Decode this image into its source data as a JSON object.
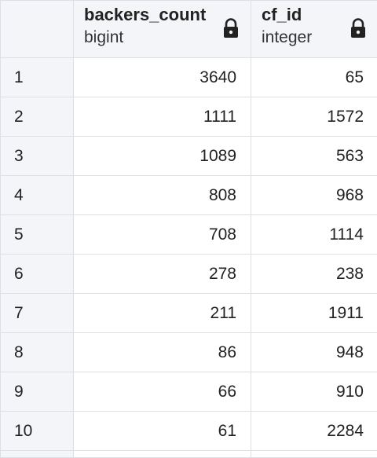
{
  "columns": [
    {
      "name": "backers_count",
      "type": "bigint",
      "icon": "lock-icon"
    },
    {
      "name": "cf_id",
      "type": "integer",
      "icon": "lock-icon"
    }
  ],
  "rows": [
    {
      "row_number": "1",
      "backers_count": "3640",
      "cf_id": "65"
    },
    {
      "row_number": "2",
      "backers_count": "1111",
      "cf_id": "1572"
    },
    {
      "row_number": "3",
      "backers_count": "1089",
      "cf_id": "563"
    },
    {
      "row_number": "4",
      "backers_count": "808",
      "cf_id": "968"
    },
    {
      "row_number": "5",
      "backers_count": "708",
      "cf_id": "1114"
    },
    {
      "row_number": "6",
      "backers_count": "278",
      "cf_id": "238"
    },
    {
      "row_number": "7",
      "backers_count": "211",
      "cf_id": "1911"
    },
    {
      "row_number": "8",
      "backers_count": "86",
      "cf_id": "948"
    },
    {
      "row_number": "9",
      "backers_count": "66",
      "cf_id": "910"
    },
    {
      "row_number": "10",
      "backers_count": "61",
      "cf_id": "2284"
    }
  ],
  "colors": {
    "header_bg": "#f4f5f8",
    "border": "#dcdfe6",
    "text": "#222222"
  }
}
